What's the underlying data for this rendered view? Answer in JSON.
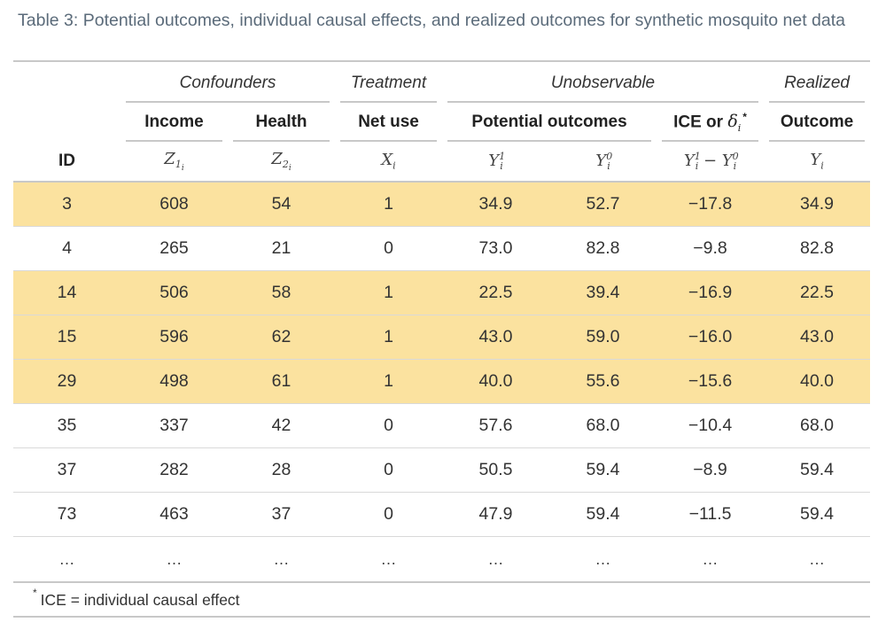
{
  "caption": "Table 3: Potential outcomes, individual causal effects, and realized outcomes for synthetic mosquito net data",
  "groups": {
    "confounders": "Confounders",
    "treatment": "Treatment",
    "unobservable": "Unobservable",
    "realized": "Realized"
  },
  "subheaders": {
    "income": "Income",
    "health": "Health",
    "net_use": "Net use",
    "potential_outcomes": "Potential outcomes",
    "ice_prefix": "ICE or",
    "outcome": "Outcome"
  },
  "symbols": {
    "id": "ID"
  },
  "rows": [
    {
      "id": "3",
      "income": "608",
      "health": "54",
      "net": "1",
      "y1": "34.9",
      "y0": "52.7",
      "ice": "−17.8",
      "outcome": "34.9",
      "highlight": true
    },
    {
      "id": "4",
      "income": "265",
      "health": "21",
      "net": "0",
      "y1": "73.0",
      "y0": "82.8",
      "ice": "−9.8",
      "outcome": "82.8",
      "highlight": false
    },
    {
      "id": "14",
      "income": "506",
      "health": "58",
      "net": "1",
      "y1": "22.5",
      "y0": "39.4",
      "ice": "−16.9",
      "outcome": "22.5",
      "highlight": true
    },
    {
      "id": "15",
      "income": "596",
      "health": "62",
      "net": "1",
      "y1": "43.0",
      "y0": "59.0",
      "ice": "−16.0",
      "outcome": "43.0",
      "highlight": true
    },
    {
      "id": "29",
      "income": "498",
      "health": "61",
      "net": "1",
      "y1": "40.0",
      "y0": "55.6",
      "ice": "−15.6",
      "outcome": "40.0",
      "highlight": true
    },
    {
      "id": "35",
      "income": "337",
      "health": "42",
      "net": "0",
      "y1": "57.6",
      "y0": "68.0",
      "ice": "−10.4",
      "outcome": "68.0",
      "highlight": false
    },
    {
      "id": "37",
      "income": "282",
      "health": "28",
      "net": "0",
      "y1": "50.5",
      "y0": "59.4",
      "ice": "−8.9",
      "outcome": "59.4",
      "highlight": false
    },
    {
      "id": "73",
      "income": "463",
      "health": "37",
      "net": "0",
      "y1": "47.9",
      "y0": "59.4",
      "ice": "−11.5",
      "outcome": "59.4",
      "highlight": false
    }
  ],
  "ellipsis": "…",
  "footnote": {
    "mark": "*",
    "text": "ICE = individual causal effect"
  },
  "colors": {
    "highlight": "#fbe29f",
    "rule": "#c8c8c8",
    "caption": "#5b6b7a"
  }
}
